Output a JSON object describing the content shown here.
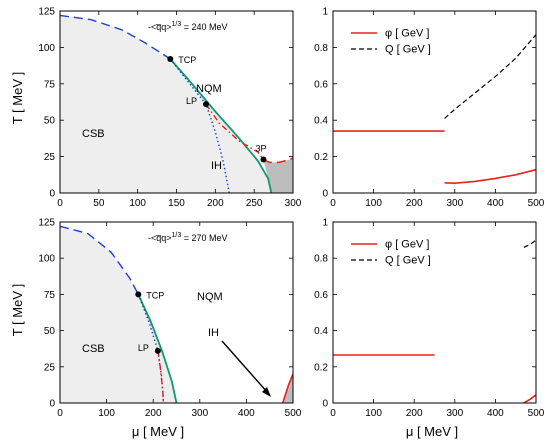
{
  "colors": {
    "csb_fill": "#eeeeee",
    "ih_fill": "#bdbdbd",
    "red": "#e8221b",
    "blue": "#1f3fd6",
    "green": "#0f9a6b",
    "black": "#000000"
  },
  "chart_data": [
    {
      "type": "line",
      "panel": "top-left",
      "annotation": "-<q̅q>^1/3 = 240 MeV",
      "xlabel": "",
      "ylabel": "T  [ MeV ]",
      "xlim": [
        0,
        300
      ],
      "ylim": [
        0,
        125
      ],
      "xticks": [
        "0",
        "50",
        "100",
        "150",
        "200",
        "250",
        "300"
      ],
      "yticks": [
        "0",
        "25",
        "50",
        "75",
        "100",
        "125"
      ],
      "regions": [
        "CSB",
        "NQM",
        "IH"
      ],
      "points": [
        {
          "label": "TCP",
          "x": 142,
          "y": 92
        },
        {
          "label": "LP",
          "x": 188,
          "y": 61
        },
        {
          "label": "3P",
          "x": 262,
          "y": 23
        }
      ],
      "series": [
        {
          "style": "blue-dashed",
          "x": [
            0,
            40,
            80,
            110,
            142
          ],
          "y": [
            122,
            119,
            112,
            103,
            92
          ]
        },
        {
          "style": "green-solid",
          "x": [
            142,
            170,
            200,
            230,
            255,
            268,
            272
          ],
          "y": [
            92,
            75,
            56,
            38,
            22,
            10,
            0
          ]
        },
        {
          "style": "blue-dotted",
          "x": [
            142,
            170,
            188,
            200,
            210,
            218
          ],
          "y": [
            92,
            73,
            61,
            42,
            22,
            0
          ]
        },
        {
          "style": "red-dashdot",
          "x": [
            188,
            205,
            230,
            255,
            262
          ],
          "y": [
            61,
            48,
            36,
            28,
            23
          ]
        },
        {
          "style": "red-dashed",
          "x": [
            262,
            270,
            282,
            296,
            300
          ],
          "y": [
            23,
            21,
            21,
            23,
            24
          ]
        }
      ]
    },
    {
      "type": "line",
      "panel": "top-right",
      "xlim": [
        0,
        500
      ],
      "ylim": [
        0,
        1
      ],
      "xticks": [
        "0",
        "100",
        "200",
        "300",
        "400",
        "500"
      ],
      "yticks": [
        "0",
        "0.2",
        "0.4",
        "0.6",
        "0.8",
        "1"
      ],
      "series": [
        {
          "name": "φ  [ GeV ]",
          "style": "red-solid",
          "x": [
            0,
            275
          ],
          "y": [
            0.34,
            0.34
          ]
        },
        {
          "name": "φ  [ GeV ]",
          "style": "red-solid",
          "x": [
            275,
            300,
            350,
            400,
            450,
            500
          ],
          "y": [
            0.056,
            0.054,
            0.064,
            0.08,
            0.1,
            0.128
          ]
        },
        {
          "name": "Q  [ GeV ]",
          "style": "black-dashed",
          "x": [
            275,
            300,
            350,
            400,
            450,
            500
          ],
          "y": [
            0.41,
            0.46,
            0.55,
            0.64,
            0.74,
            0.87
          ]
        }
      ],
      "legend": [
        "φ  [ GeV ]",
        "Q  [ GeV ]"
      ]
    },
    {
      "type": "line",
      "panel": "bottom-left",
      "annotation": "-<q̅q>^1/3 = 270 MeV",
      "xlabel": "μ  [ MeV ]",
      "ylabel": "T  [ MeV ]",
      "xlim": [
        0,
        500
      ],
      "ylim": [
        0,
        125
      ],
      "xticks": [
        "0",
        "100",
        "200",
        "300",
        "400",
        "500"
      ],
      "yticks": [
        "0",
        "25",
        "50",
        "75",
        "100",
        "125"
      ],
      "regions": [
        "CSB",
        "NQM",
        "IH"
      ],
      "points": [
        {
          "label": "TCP",
          "x": 168,
          "y": 75
        },
        {
          "label": "LP",
          "x": 210,
          "y": 36
        }
      ],
      "series": [
        {
          "style": "blue-dashed",
          "x": [
            0,
            60,
            110,
            150,
            168
          ],
          "y": [
            122,
            117,
            104,
            86,
            75
          ]
        },
        {
          "style": "green-solid",
          "x": [
            168,
            195,
            220,
            240,
            250
          ],
          "y": [
            75,
            56,
            35,
            15,
            0
          ]
        },
        {
          "style": "blue-dotted",
          "x": [
            168,
            192,
            210,
            218,
            222
          ],
          "y": [
            75,
            55,
            36,
            18,
            0
          ]
        },
        {
          "style": "red-dashdot",
          "x": [
            210,
            215,
            220,
            222
          ],
          "y": [
            36,
            25,
            10,
            0
          ]
        },
        {
          "style": "red-solid",
          "x": [
            478,
            490,
            500
          ],
          "y": [
            0,
            12,
            20
          ]
        }
      ]
    },
    {
      "type": "line",
      "panel": "bottom-right",
      "xlabel": "μ  [ MeV ]",
      "xlim": [
        0,
        500
      ],
      "ylim": [
        0,
        1
      ],
      "xticks": [
        "0",
        "100",
        "200",
        "300",
        "400",
        "500"
      ],
      "yticks": [
        "0",
        "0.2",
        "0.4",
        "0.6",
        "0.8",
        "1"
      ],
      "series": [
        {
          "name": "φ  [ GeV ]",
          "style": "red-solid",
          "x": [
            0,
            250
          ],
          "y": [
            0.265,
            0.265
          ]
        },
        {
          "name": "φ  [ GeV ]",
          "style": "red-solid",
          "x": [
            470,
            485,
            500
          ],
          "y": [
            0.0,
            0.02,
            0.045
          ]
        },
        {
          "name": "Q  [ GeV ]",
          "style": "black-dashed",
          "x": [
            470,
            485,
            500
          ],
          "y": [
            0.86,
            0.875,
            0.9
          ]
        }
      ],
      "legend": [
        "φ  [ GeV ]",
        "Q  [ GeV ]"
      ]
    }
  ]
}
